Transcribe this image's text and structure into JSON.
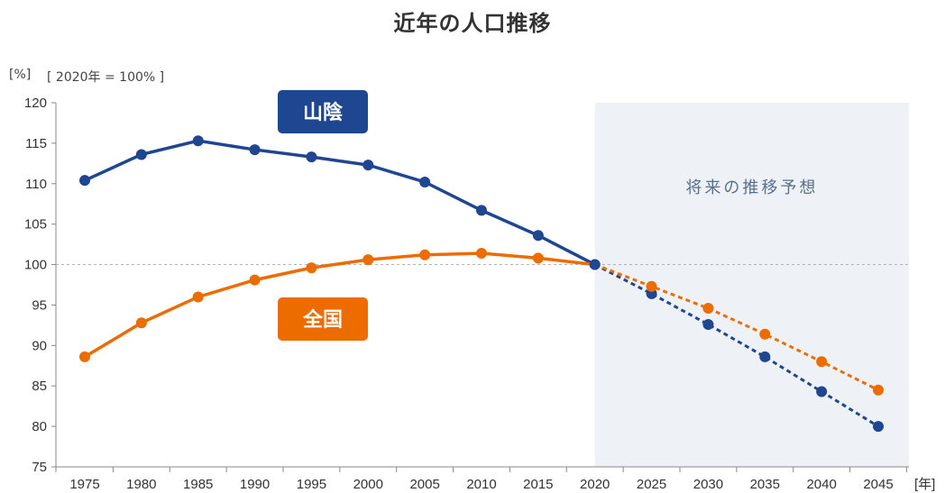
{
  "title": "近年の人口推移",
  "unit_label": "[%]",
  "base_label": "[ 2020年 = 100% ]",
  "colors": {
    "sanin": "#1f4690",
    "zenkoku": "#ec6c00",
    "forecast_bg": "#eef2f7",
    "forecast_text": "#5a6f8c",
    "axis": "#888888"
  },
  "chart_data": {
    "type": "line",
    "title": "近年の人口推移",
    "xlabel": "[年]",
    "ylabel": "[%]",
    "ylim": [
      75,
      120
    ],
    "yticks": [
      75,
      80,
      85,
      90,
      95,
      100,
      105,
      110,
      115,
      120
    ],
    "x": [
      1975,
      1980,
      1985,
      1990,
      1995,
      2000,
      2005,
      2010,
      2015,
      2020,
      2025,
      2030,
      2035,
      2040,
      2045
    ],
    "forecast_region": {
      "from": 2020,
      "to": 2045,
      "label": "将来の推移予想"
    },
    "reference_line": 100,
    "series": [
      {
        "name": "山陰",
        "color": "#1f4690",
        "values": [
          110.4,
          113.6,
          115.3,
          114.2,
          113.3,
          112.3,
          110.2,
          106.7,
          103.6,
          100.0,
          96.4,
          92.6,
          88.6,
          84.3,
          80.0
        ]
      },
      {
        "name": "全国",
        "color": "#ec6c00",
        "values": [
          88.6,
          92.8,
          96.0,
          98.1,
          99.6,
          100.6,
          101.2,
          101.4,
          100.8,
          100.0,
          97.3,
          94.6,
          91.4,
          88.0,
          84.5
        ]
      }
    ],
    "legend": "inline labels"
  }
}
